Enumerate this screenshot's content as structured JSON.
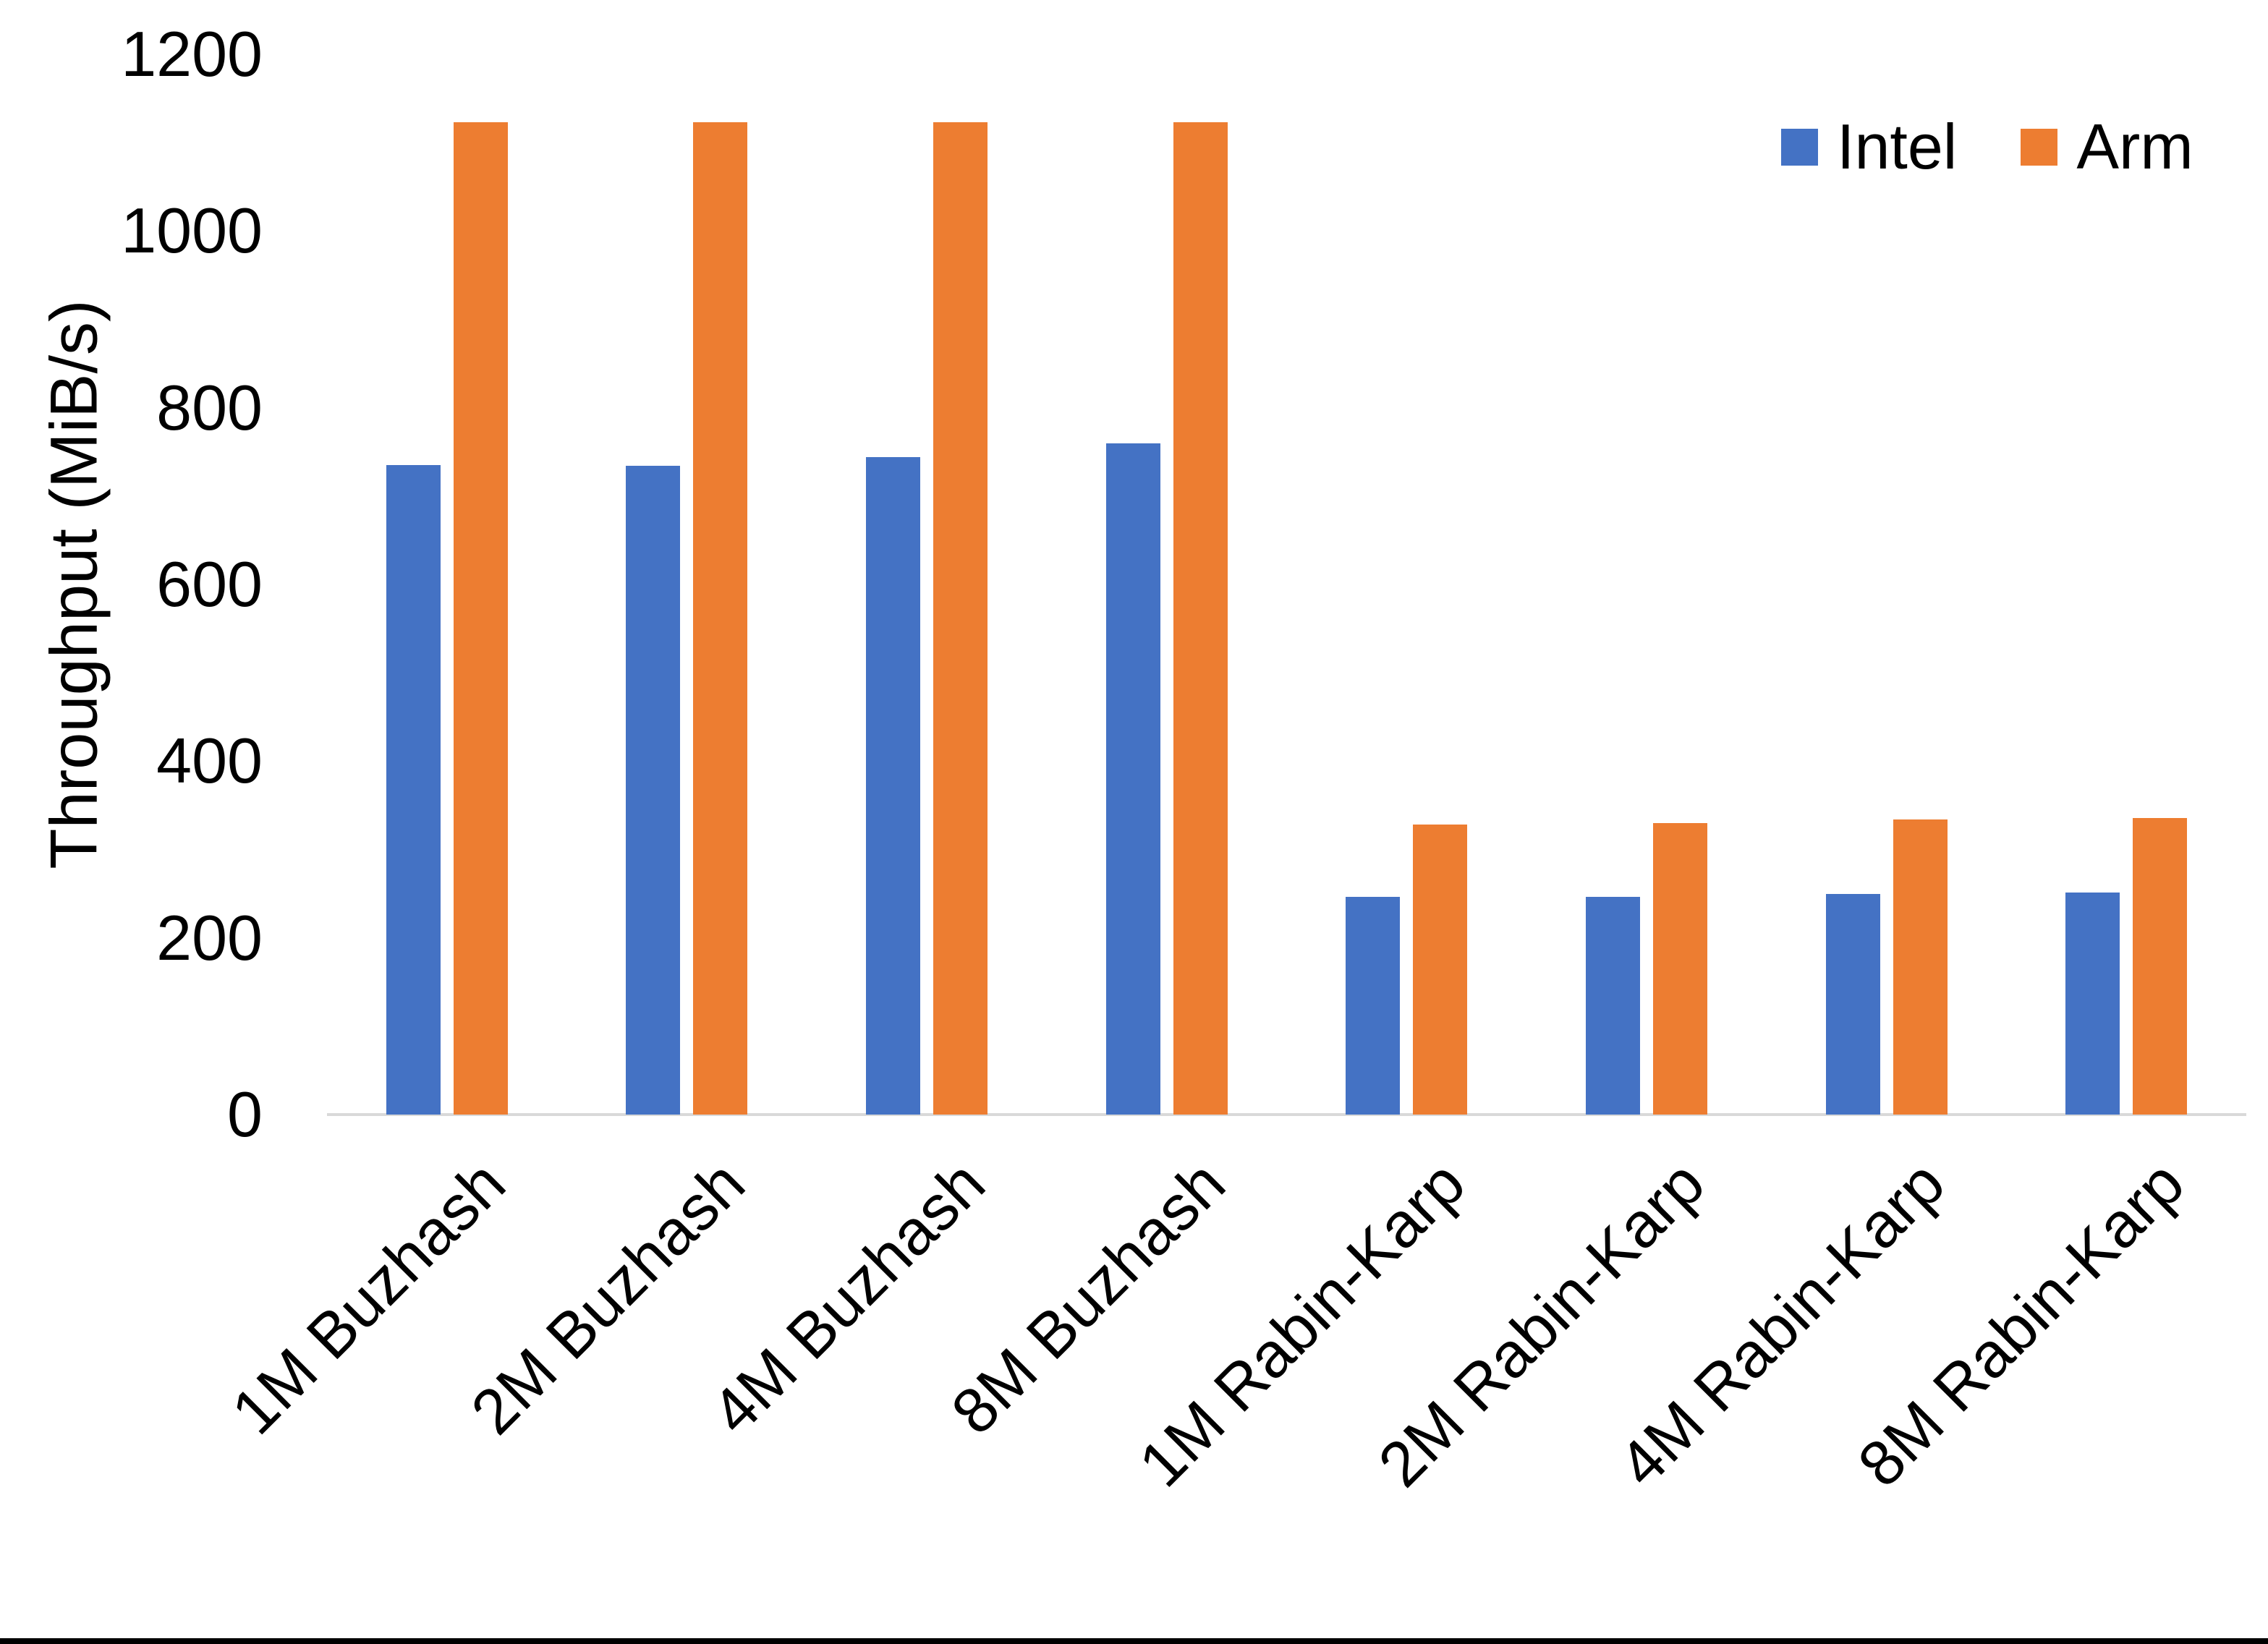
{
  "chart_data": {
    "type": "bar",
    "title": "",
    "xlabel": "",
    "ylabel": "Throughput (MiB/s)",
    "ylim": [
      0,
      1200
    ],
    "yticks": [
      0,
      200,
      400,
      600,
      800,
      1000,
      1200
    ],
    "grid": false,
    "legend_position": "top-right",
    "categories": [
      "1M Buzhash",
      "2M Buzhash",
      "4M Buzhash",
      "8M Buzhash",
      "1M Rabin-Karp",
      "2M Rabin-Karp",
      "4M Rabin-Karp",
      "8M Rabin-Karp"
    ],
    "series": [
      {
        "name": "Intel",
        "color": "#4472C4",
        "values": [
          735,
          734,
          744,
          760,
          246,
          246,
          250,
          251
        ]
      },
      {
        "name": "Arm",
        "color": "#ED7D31",
        "values": [
          1123,
          1123,
          1123,
          1123,
          328,
          330,
          334,
          336
        ]
      }
    ]
  },
  "colors": {
    "background": "#FFFFFF",
    "text": "#000000",
    "axis_line": "#D9D9D9",
    "bottom_border": "#000000"
  }
}
